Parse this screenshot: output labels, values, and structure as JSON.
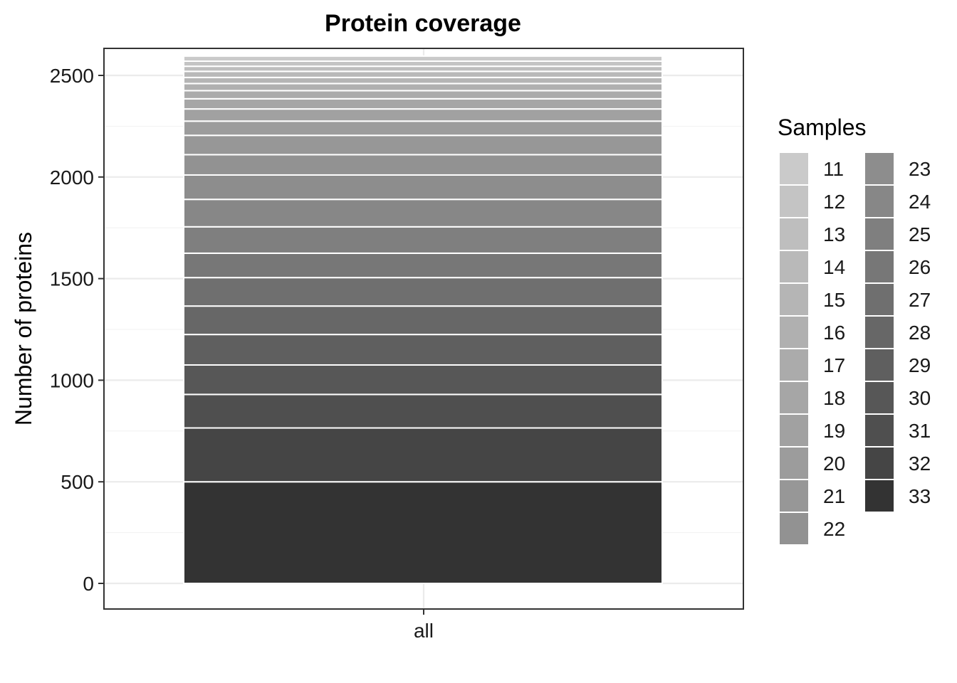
{
  "chart_data": {
    "type": "bar",
    "stacked": true,
    "title": "Protein coverage",
    "xlabel": "",
    "ylabel": "Number of proteins",
    "categories": [
      "all"
    ],
    "ylim": [
      0,
      2500
    ],
    "yticks": [
      0,
      500,
      1000,
      1500,
      2000,
      2500
    ],
    "grid": true,
    "legend": {
      "title": "Samples",
      "position": "right",
      "columns": 2
    },
    "series": [
      {
        "name": "33",
        "values": [
          500
        ],
        "color": "#333333"
      },
      {
        "name": "32",
        "values": [
          265
        ],
        "color": "#454545"
      },
      {
        "name": "31",
        "values": [
          165
        ],
        "color": "#4f4f4f"
      },
      {
        "name": "30",
        "values": [
          145
        ],
        "color": "#575757"
      },
      {
        "name": "29",
        "values": [
          150
        ],
        "color": "#5f5f5f"
      },
      {
        "name": "28",
        "values": [
          140
        ],
        "color": "#676767"
      },
      {
        "name": "27",
        "values": [
          140
        ],
        "color": "#6f6f6f"
      },
      {
        "name": "26",
        "values": [
          120
        ],
        "color": "#777777"
      },
      {
        "name": "25",
        "values": [
          130
        ],
        "color": "#7f7f7f"
      },
      {
        "name": "24",
        "values": [
          135
        ],
        "color": "#878787"
      },
      {
        "name": "23",
        "values": [
          120
        ],
        "color": "#8d8d8d"
      },
      {
        "name": "22",
        "values": [
          100
        ],
        "color": "#929292"
      },
      {
        "name": "21",
        "values": [
          95
        ],
        "color": "#979797"
      },
      {
        "name": "20",
        "values": [
          70
        ],
        "color": "#9c9c9c"
      },
      {
        "name": "19",
        "values": [
          60
        ],
        "color": "#a1a1a1"
      },
      {
        "name": "18",
        "values": [
          50
        ],
        "color": "#a6a6a6"
      },
      {
        "name": "17",
        "values": [
          40
        ],
        "color": "#ababab"
      },
      {
        "name": "16",
        "values": [
          35
        ],
        "color": "#b0b0b0"
      },
      {
        "name": "15",
        "values": [
          30
        ],
        "color": "#b5b5b5"
      },
      {
        "name": "14",
        "values": [
          30
        ],
        "color": "#b9b9b9"
      },
      {
        "name": "13",
        "values": [
          25
        ],
        "color": "#bebebe"
      },
      {
        "name": "12",
        "values": [
          25
        ],
        "color": "#c4c4c4"
      },
      {
        "name": "11",
        "values": [
          25
        ],
        "color": "#cacaca"
      }
    ]
  }
}
